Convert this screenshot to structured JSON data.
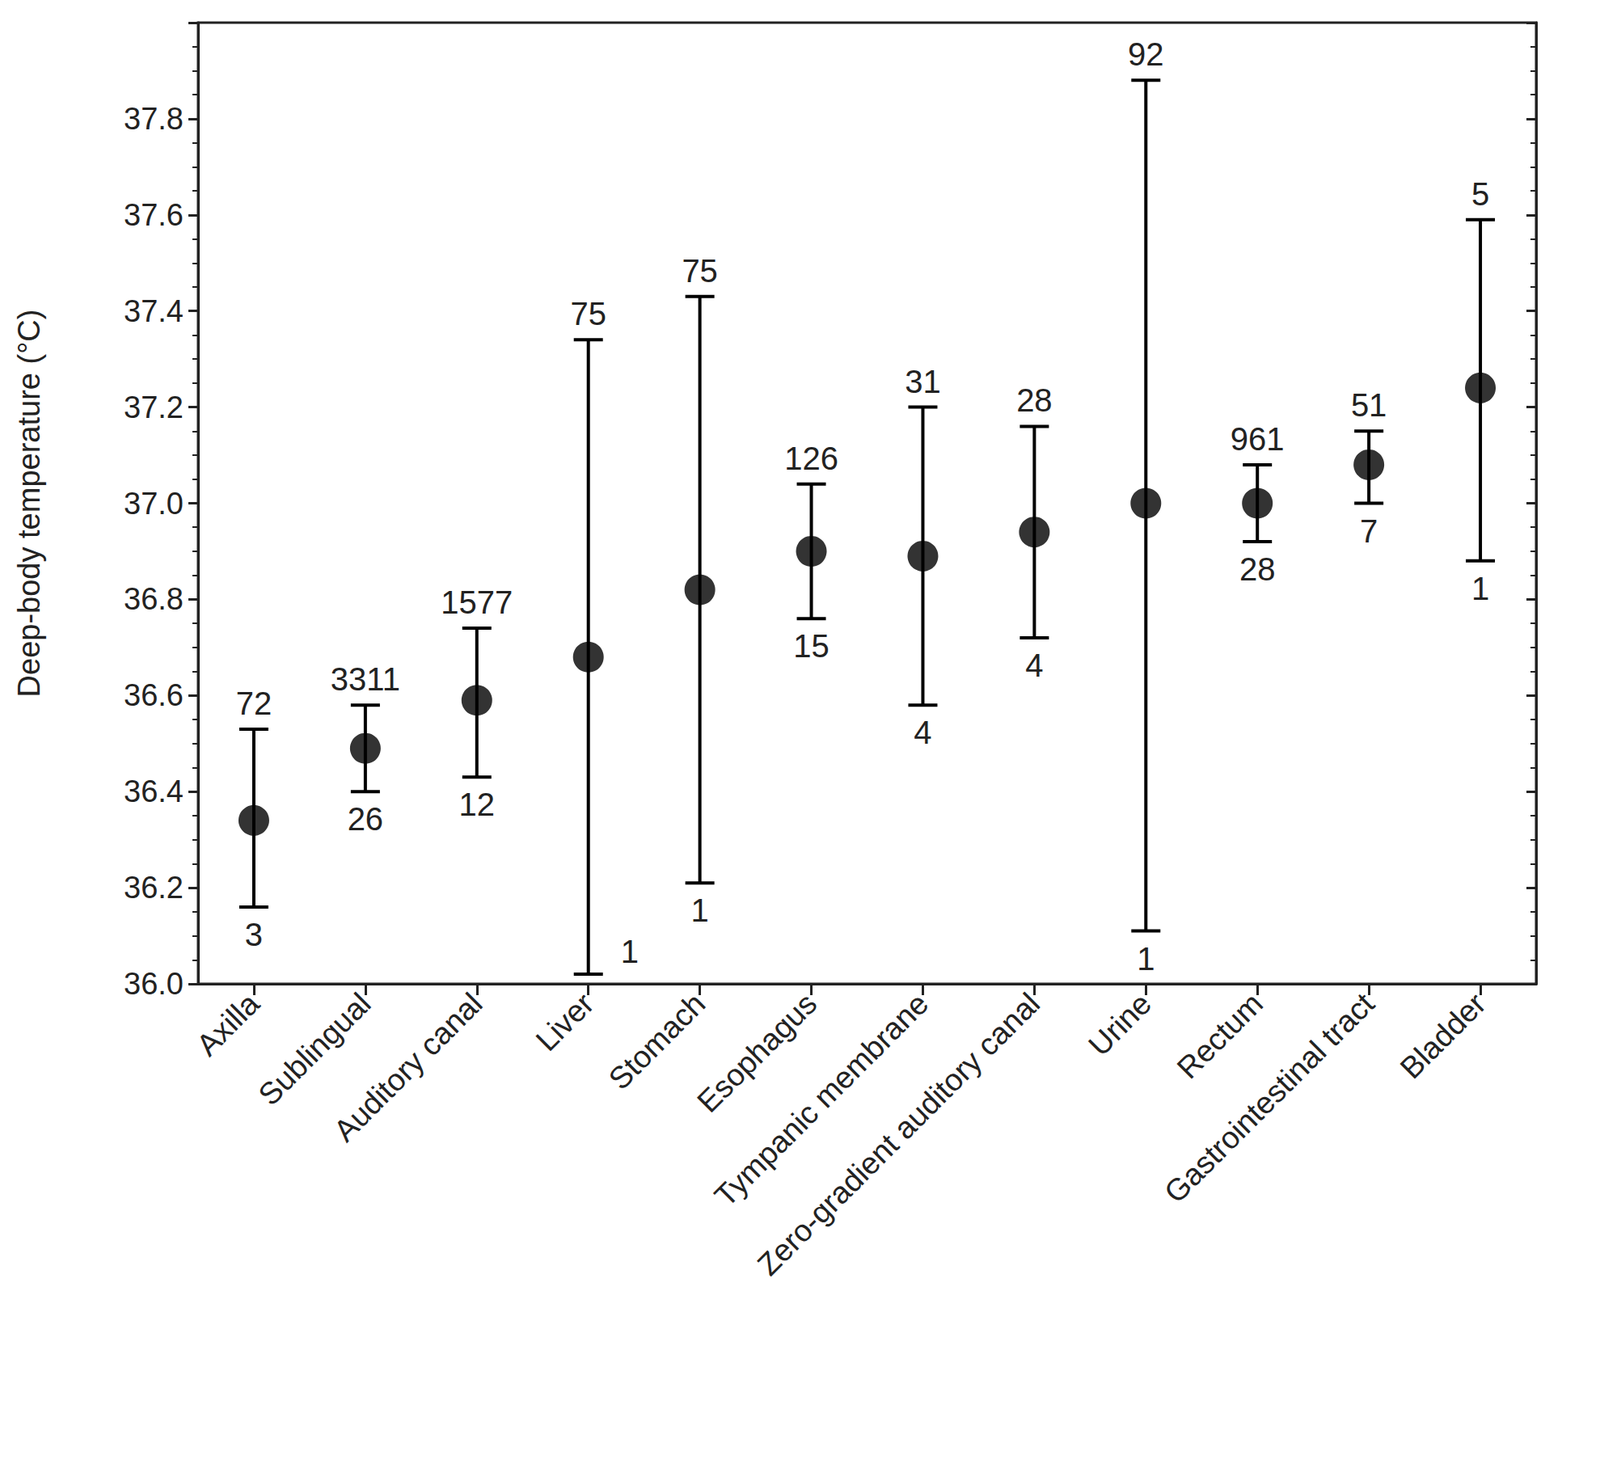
{
  "chart_data": {
    "type": "scatter",
    "y_label": "Deep-body temperature (°C)",
    "categories": [
      "Axilla",
      "Sublingual",
      "Auditory canal",
      "Liver",
      "Stomach",
      "Esophagus",
      "Tympanic membrane",
      "Zero-gradient auditory canal",
      "Urine",
      "Rectum",
      "Gastrointestinal tract",
      "Bladder"
    ],
    "values": [
      36.34,
      36.49,
      36.59,
      36.68,
      36.82,
      36.9,
      36.89,
      36.94,
      37.0,
      37.0,
      37.08,
      37.24
    ],
    "error_lower": [
      36.16,
      36.4,
      36.43,
      36.02,
      36.21,
      36.76,
      36.58,
      36.72,
      36.11,
      36.92,
      37.0,
      36.88
    ],
    "error_upper": [
      36.53,
      36.58,
      36.74,
      37.34,
      37.43,
      37.04,
      37.2,
      37.16,
      37.88,
      37.08,
      37.15,
      37.59
    ],
    "annotations_above": [
      72,
      3311,
      1577,
      75,
      75,
      126,
      31,
      28,
      92,
      961,
      51,
      5
    ],
    "annotations_below": [
      3,
      26,
      12,
      1,
      1,
      15,
      4,
      4,
      1,
      28,
      7,
      1
    ],
    "color": "#000000",
    "marker": "circle",
    "ylim": [
      36.0,
      38.0
    ],
    "yticks": [
      {
        "value": 36.0,
        "label": "36.0"
      },
      {
        "value": 36.2,
        "label": "36.2"
      },
      {
        "value": 36.4,
        "label": "36.4"
      },
      {
        "value": 36.6,
        "label": "36.6"
      },
      {
        "value": 36.8,
        "label": "36.8"
      },
      {
        "value": 37.0,
        "label": "37.0"
      },
      {
        "value": 37.2,
        "label": "37.2"
      },
      {
        "value": 37.4,
        "label": "37.4"
      },
      {
        "value": 37.6,
        "label": "37.6"
      },
      {
        "value": 37.8,
        "label": "37.8"
      }
    ],
    "grid": false
  }
}
